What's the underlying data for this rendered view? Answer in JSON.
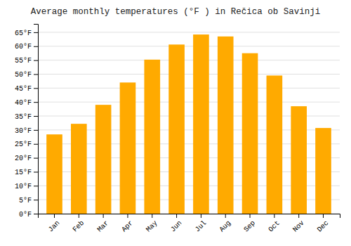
{
  "chart_data": {
    "type": "bar",
    "title": "Average monthly temperatures (°F ) in Rečica ob Savinji",
    "categories": [
      "Jan",
      "Feb",
      "Mar",
      "Apr",
      "May",
      "Jun",
      "Jul",
      "Aug",
      "Sep",
      "Oct",
      "Nov",
      "Dec"
    ],
    "values": [
      28.4,
      32.2,
      39.0,
      47.0,
      55.2,
      60.6,
      64.2,
      63.5,
      57.5,
      49.5,
      38.5,
      30.7
    ],
    "color": "#FFAA00",
    "ylim": [
      0,
      68
    ],
    "yticks": [
      {
        "value": 0,
        "label": "0°F"
      },
      {
        "value": 5,
        "label": "5°F"
      },
      {
        "value": 10,
        "label": "10°F"
      },
      {
        "value": 15,
        "label": "15°F"
      },
      {
        "value": 20,
        "label": "20°F"
      },
      {
        "value": 25,
        "label": "25°F"
      },
      {
        "value": 30,
        "label": "30°F"
      },
      {
        "value": 35,
        "label": "35°F"
      },
      {
        "value": 40,
        "label": "40°F"
      },
      {
        "value": 45,
        "label": "45°F"
      },
      {
        "value": 50,
        "label": "50°F"
      },
      {
        "value": 55,
        "label": "55°F"
      },
      {
        "value": 60,
        "label": "60°F"
      },
      {
        "value": 65,
        "label": "65°F"
      }
    ],
    "grid": true
  }
}
